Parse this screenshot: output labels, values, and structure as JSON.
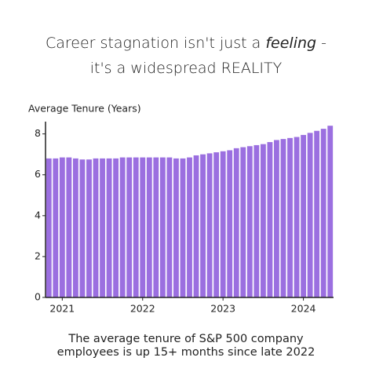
{
  "chart_data": {
    "type": "bar",
    "title_lines": [
      [
        {
          "text": "Career stagnation isn't just a ",
          "italic": false
        },
        {
          "text": "feeling",
          "italic": true
        },
        {
          "text": " -",
          "italic": false
        }
      ],
      [
        {
          "text": "it's a widespread REALITY",
          "italic": false
        }
      ]
    ],
    "y_label": "Average Tenure (Years)",
    "footnote": [
      "The average tenure of S&P 500 company",
      "employees is up 15+ months since late 2022"
    ],
    "categories": [
      null,
      null,
      "2021",
      null,
      null,
      null,
      null,
      null,
      null,
      null,
      null,
      null,
      null,
      null,
      "2022",
      null,
      null,
      null,
      null,
      null,
      null,
      null,
      null,
      null,
      null,
      null,
      "2023",
      null,
      null,
      null,
      null,
      null,
      null,
      null,
      null,
      null,
      null,
      null,
      "2024",
      null,
      null,
      null,
      null
    ],
    "values": [
      6.8,
      6.8,
      6.85,
      6.85,
      6.8,
      6.75,
      6.75,
      6.8,
      6.8,
      6.8,
      6.8,
      6.85,
      6.85,
      6.85,
      6.85,
      6.85,
      6.85,
      6.85,
      6.85,
      6.8,
      6.8,
      6.85,
      6.95,
      7.0,
      7.05,
      7.1,
      7.15,
      7.2,
      7.3,
      7.35,
      7.4,
      7.45,
      7.5,
      7.6,
      7.7,
      7.75,
      7.8,
      7.85,
      7.95,
      8.05,
      8.15,
      8.25,
      8.4
    ],
    "color": "#9b6fe0",
    "ylim": [
      0,
      8.6
    ],
    "yticks": [
      0,
      2,
      4,
      6,
      8
    ],
    "grid": false
  }
}
